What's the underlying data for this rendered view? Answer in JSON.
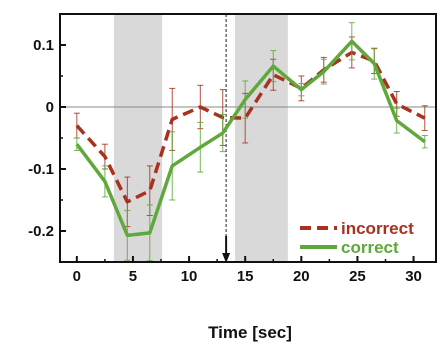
{
  "chart_data": {
    "type": "line",
    "title": "",
    "xlabel": "Time [sec]",
    "ylabel": "",
    "xlim": [
      -1.5,
      32
    ],
    "ylim": [
      -0.25,
      0.15
    ],
    "x_ticks": [
      0,
      5,
      10,
      15,
      20,
      25,
      30
    ],
    "x_tick_labels": [
      "0",
      "5",
      "10",
      "15",
      "20",
      "25",
      "30"
    ],
    "y_ticks": [
      0.1,
      0,
      -0.1,
      -0.2
    ],
    "y_tick_labels": [
      "0.1",
      "0",
      "-0.1",
      "-0.2"
    ],
    "shaded_intervals": [
      [
        3.3,
        7.6
      ],
      [
        14.1,
        18.8
      ]
    ],
    "zero_line": 0,
    "event_marker_x": 13.3,
    "x": [
      0,
      2.5,
      4.5,
      6.5,
      8.5,
      11,
      13,
      15,
      17.5,
      20,
      22,
      24.5,
      26.5,
      28.5,
      31
    ],
    "series": [
      {
        "name": "incorrect",
        "color": "#a8321e",
        "style": "dashed",
        "values": [
          -0.03,
          -0.08,
          -0.153,
          -0.135,
          -0.02,
          0.0,
          -0.017,
          -0.018,
          0.052,
          0.03,
          0.06,
          0.088,
          0.074,
          0.005,
          -0.018
        ],
        "errors": [
          0.02,
          0.02,
          0.04,
          0.04,
          0.05,
          0.035,
          0.045,
          0.04,
          0.025,
          0.02,
          0.02,
          0.025,
          0.02,
          0.02,
          0.02
        ]
      },
      {
        "name": "correct",
        "color": "#5fa83a",
        "style": "solid",
        "values": [
          -0.06,
          -0.12,
          -0.207,
          -0.203,
          -0.095,
          -0.065,
          -0.042,
          0.012,
          0.066,
          0.028,
          0.057,
          0.106,
          0.07,
          -0.022,
          -0.056
        ],
        "errors": [
          0.01,
          0.025,
          0.04,
          0.045,
          0.055,
          0.04,
          0.03,
          0.03,
          0.025,
          0.01,
          0.02,
          0.03,
          0.025,
          0.02,
          0.01
        ]
      }
    ],
    "legend": {
      "placement": "bottom-right",
      "entries": [
        "incorrect",
        "correct"
      ]
    },
    "grid": false
  }
}
